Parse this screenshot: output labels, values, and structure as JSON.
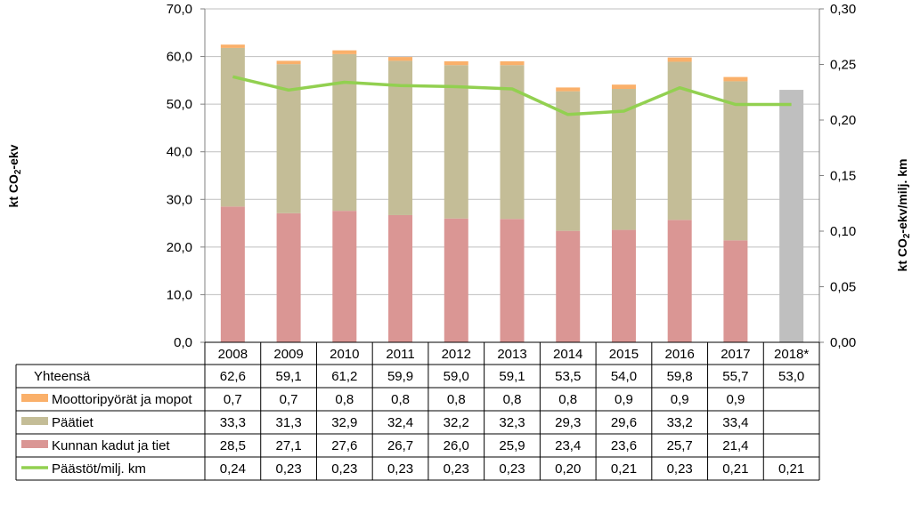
{
  "chart_data": {
    "type": "bar",
    "stacked": true,
    "categories": [
      "2008",
      "2009",
      "2010",
      "2011",
      "2012",
      "2013",
      "2014",
      "2015",
      "2016",
      "2017",
      "2018*"
    ],
    "ylabel_left": "kt CO",
    "ylabel_left_sub": "2",
    "ylabel_left_suffix": "-ekv",
    "ylabel_right": "kt CO",
    "ylabel_right_sub": "2",
    "ylabel_right_suffix": "-ekv/milj. km",
    "ylim_left": [
      0,
      70
    ],
    "ylim_right": [
      0,
      0.3
    ],
    "yticks_left": [
      "0,0",
      "10,0",
      "20,0",
      "30,0",
      "40,0",
      "50,0",
      "60,0",
      "70,0"
    ],
    "yticks_right": [
      "0,00",
      "0,05",
      "0,10",
      "0,15",
      "0,20",
      "0,25",
      "0,30"
    ],
    "grid": true,
    "series": [
      {
        "name": "Kunnan kadut ja tiet",
        "color": "#da9694",
        "values": [
          28.5,
          27.1,
          27.6,
          26.7,
          26.0,
          25.9,
          23.4,
          23.6,
          25.7,
          21.4,
          null
        ],
        "labels": [
          "28,5",
          "27,1",
          "27,6",
          "26,7",
          "26,0",
          "25,9",
          "23,4",
          "23,6",
          "25,7",
          "21,4",
          ""
        ]
      },
      {
        "name": "Päätiet",
        "color": "#c4bd97",
        "values": [
          33.3,
          31.3,
          32.9,
          32.4,
          32.2,
          32.3,
          29.3,
          29.6,
          33.2,
          33.4,
          null
        ],
        "labels": [
          "33,3",
          "31,3",
          "32,9",
          "32,4",
          "32,2",
          "32,3",
          "29,3",
          "29,6",
          "33,2",
          "33,4",
          ""
        ]
      },
      {
        "name": "Moottoripyörät ja mopot",
        "color": "#fab06a",
        "values": [
          0.7,
          0.7,
          0.8,
          0.8,
          0.8,
          0.8,
          0.8,
          0.9,
          0.9,
          0.9,
          null
        ],
        "labels": [
          "0,7",
          "0,7",
          "0,8",
          "0,8",
          "0,8",
          "0,8",
          "0,8",
          "0,9",
          "0,9",
          "0,9",
          ""
        ]
      },
      {
        "name": "Yhteensä",
        "color": "#bfbfbf",
        "values": [
          null,
          null,
          null,
          null,
          null,
          null,
          null,
          null,
          null,
          null,
          53.0
        ],
        "labels": [
          "62,6",
          "59,1",
          "61,2",
          "59,9",
          "59,0",
          "59,1",
          "53,5",
          "54,0",
          "59,8",
          "55,7",
          "53,0"
        ]
      },
      {
        "name": "Päästöt/milj. km",
        "color": "#92d050",
        "type": "line",
        "axis": "right",
        "values": [
          0.239,
          0.227,
          0.234,
          0.231,
          0.23,
          0.228,
          0.205,
          0.208,
          0.229,
          0.214,
          0.214
        ],
        "labels": [
          "0,24",
          "0,23",
          "0,23",
          "0,23",
          "0,23",
          "0,23",
          "0,20",
          "0,21",
          "0,23",
          "0,21",
          "0,21"
        ]
      }
    ],
    "table_rows": [
      {
        "name": "Yhteensä",
        "series_index": 3,
        "key": "none"
      },
      {
        "name": "Moottoripyörät ja mopot",
        "series_index": 2,
        "key": "box"
      },
      {
        "name": "Päätiet",
        "series_index": 1,
        "key": "box"
      },
      {
        "name": "Kunnan kadut ja tiet",
        "series_index": 0,
        "key": "box"
      },
      {
        "name": "Päästöt/milj. km",
        "series_index": 4,
        "key": "line"
      }
    ]
  },
  "colors": {
    "grid": "#bfbfbf",
    "axis": "#808080",
    "line": "#92d050"
  }
}
